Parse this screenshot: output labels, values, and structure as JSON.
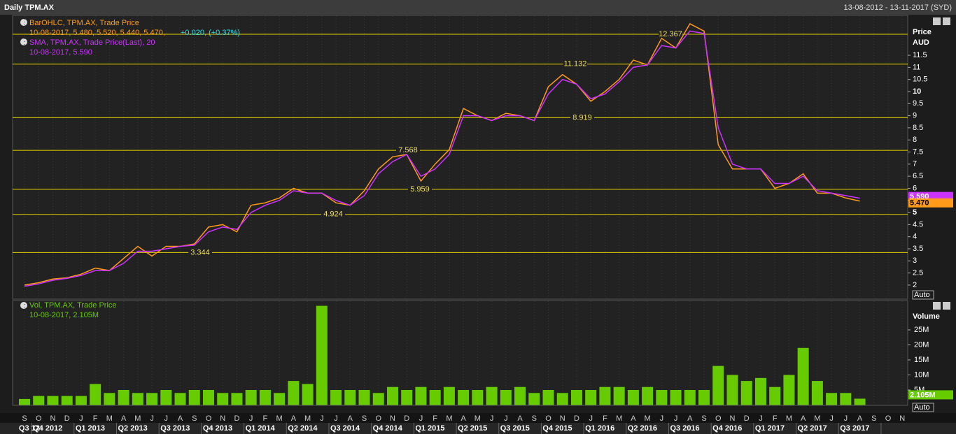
{
  "header": {
    "title": "Daily TPM.AX",
    "date_range": "13-08-2012 - 13-11-2017 (SYD)"
  },
  "chart_data": [
    {
      "type": "line",
      "legend": [
        "BarOHLC, TPM.AX, Trade Price",
        "10-08-2017, 5.480, 5.520, 5.440, 5.470,",
        "+0.020, (+0.37%)",
        "SMA, TPM.AX, Trade Price(Last),  20",
        "10-08-2017, 5.590"
      ],
      "axis_title": "Price",
      "axis_unit": "AUD",
      "auto_label": "Auto",
      "categories": [
        "S",
        "O",
        "N",
        "D",
        "J",
        "F",
        "M",
        "A",
        "M",
        "J",
        "J",
        "A",
        "S",
        "O",
        "N",
        "D",
        "J",
        "F",
        "M",
        "A",
        "M",
        "J",
        "J",
        "A",
        "S",
        "O",
        "N",
        "D",
        "J",
        "F",
        "M",
        "A",
        "M",
        "J",
        "J",
        "A",
        "S",
        "O",
        "N",
        "D",
        "J",
        "F",
        "M",
        "A",
        "M",
        "J",
        "J",
        "A",
        "S",
        "O",
        "N",
        "D",
        "J",
        "F",
        "M",
        "A",
        "M",
        "J",
        "J",
        "A",
        "S",
        "O",
        "N"
      ],
      "quarters": [
        "Q3 12",
        "Q4 2012",
        "Q1 2013",
        "Q2 2013",
        "Q3 2013",
        "Q4 2013",
        "Q1 2014",
        "Q2 2014",
        "Q3 2014",
        "Q4 2014",
        "Q1 2015",
        "Q2 2015",
        "Q3 2015",
        "Q4 2015",
        "Q1 2016",
        "Q2 2016",
        "Q3 2016",
        "Q4 2016",
        "Q1 2017",
        "Q2 2017",
        "Q3 2017"
      ],
      "series": [
        {
          "name": "BarOHLC, TPM.AX, Trade Price",
          "color": "#ff9a1a",
          "values": [
            2.0,
            2.1,
            2.25,
            2.3,
            2.45,
            2.7,
            2.6,
            3.1,
            3.6,
            3.2,
            3.6,
            3.6,
            3.7,
            4.4,
            4.5,
            4.2,
            5.3,
            5.4,
            5.6,
            6.0,
            5.8,
            5.8,
            5.4,
            5.3,
            5.9,
            6.8,
            7.3,
            7.4,
            6.3,
            7.0,
            7.6,
            9.3,
            9.0,
            8.8,
            9.1,
            9.0,
            8.8,
            10.2,
            10.7,
            10.3,
            9.6,
            10.0,
            10.5,
            11.3,
            11.1,
            12.2,
            11.8,
            12.8,
            12.5,
            7.8,
            6.8,
            6.8,
            6.8,
            6.0,
            6.2,
            6.6,
            5.8,
            5.8,
            5.6,
            5.47,
            null,
            null,
            null
          ]
        },
        {
          "name": "SMA, TPM.AX, Trade Price(Last),  20",
          "color": "#cc33ff",
          "values": [
            1.95,
            2.05,
            2.2,
            2.28,
            2.4,
            2.6,
            2.6,
            2.9,
            3.4,
            3.4,
            3.5,
            3.6,
            3.65,
            4.2,
            4.4,
            4.3,
            5.0,
            5.3,
            5.5,
            5.9,
            5.8,
            5.8,
            5.5,
            5.3,
            5.7,
            6.6,
            7.1,
            7.4,
            6.5,
            6.8,
            7.4,
            9.0,
            9.0,
            8.8,
            9.0,
            9.0,
            8.8,
            9.9,
            10.5,
            10.3,
            9.7,
            9.9,
            10.4,
            11.0,
            11.1,
            11.9,
            11.8,
            12.5,
            12.4,
            8.5,
            7.0,
            6.8,
            6.8,
            6.2,
            6.2,
            6.5,
            5.9,
            5.8,
            5.7,
            5.59,
            null,
            null,
            null
          ]
        }
      ],
      "levels": [
        3.344,
        4.924,
        5.959,
        7.568,
        8.919,
        11.132,
        12.367
      ],
      "tags": [
        {
          "value": 5.59,
          "label": "5.590",
          "color": "#cc33ff"
        },
        {
          "value": 5.47,
          "label": "5.470",
          "color": "#ff9a1a"
        }
      ],
      "ylim": [
        1.42,
        13.09
      ],
      "yticks": [
        2,
        2.5,
        3,
        3.5,
        4,
        4.5,
        5,
        5.5,
        6,
        6.5,
        7,
        7.5,
        8,
        8.5,
        9,
        9.5,
        10,
        10.5,
        11,
        11.5
      ]
    },
    {
      "type": "bar",
      "legend": [
        "Vol, TPM.AX, Trade Price",
        "10-08-2017, 2.105M"
      ],
      "axis_title": "Volume",
      "auto_label": "Auto",
      "color": "#66cc00",
      "values": [
        2,
        3,
        3,
        3,
        3,
        7,
        4,
        5,
        4,
        4,
        5,
        4,
        5,
        5,
        4,
        4,
        5,
        5,
        4,
        8,
        7,
        33,
        5,
        5,
        5,
        4,
        6,
        5,
        6,
        5,
        6,
        5,
        5,
        6,
        5,
        6,
        4,
        5,
        4,
        5,
        5,
        6,
        6,
        5,
        6,
        5,
        5,
        5,
        5,
        13,
        10,
        8,
        9,
        6,
        10,
        19,
        8,
        4,
        4,
        2.105,
        null,
        null,
        null
      ],
      "tags": [
        {
          "value": 2.105,
          "label": "2.105M",
          "color": "#66cc00"
        }
      ],
      "ylim": [
        0,
        35
      ],
      "yticks": [
        {
          "value": 5,
          "label": "5M"
        },
        {
          "value": 10,
          "label": "10M"
        },
        {
          "value": 15,
          "label": "15M"
        },
        {
          "value": 20,
          "label": "20M"
        },
        {
          "value": 25,
          "label": "25M"
        }
      ]
    }
  ]
}
